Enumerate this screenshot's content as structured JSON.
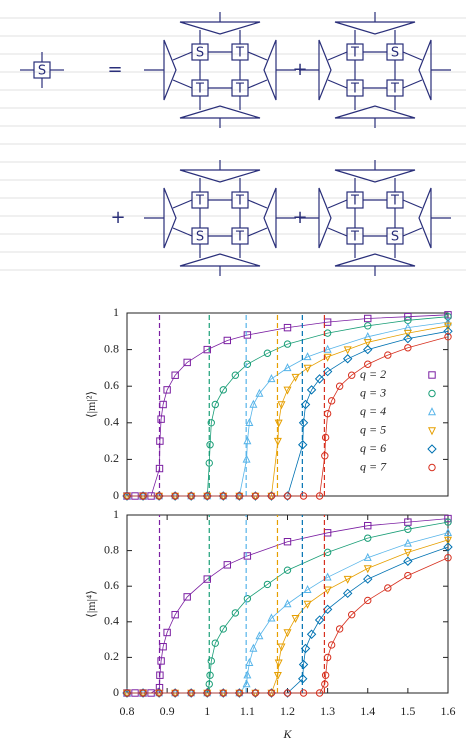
{
  "diagram": {
    "lhs": "S",
    "equals": "=",
    "plus": [
      "+",
      "+",
      "+"
    ],
    "terms": [
      [
        "S",
        "T",
        "T",
        "T"
      ],
      [
        "T",
        "S",
        "T",
        "T"
      ],
      [
        "T",
        "T",
        "S",
        "T"
      ],
      [
        "T",
        "T",
        "T",
        "S"
      ]
    ]
  },
  "chart_data": [
    {
      "type": "scatter",
      "ylabel": "⟨|m|²⟩",
      "xlim": [
        0.8,
        1.6
      ],
      "ylim": [
        0,
        1
      ],
      "yticks": [
        0,
        0.2,
        0.4,
        0.6,
        0.8,
        1
      ],
      "legend": "right",
      "series": [
        {
          "name": "q = 2",
          "color": "#7b1fa2",
          "marker": "square",
          "critical_x": 0.881,
          "x": [
            0.8,
            0.82,
            0.84,
            0.86,
            0.881,
            0.882,
            0.885,
            0.89,
            0.9,
            0.92,
            0.95,
            1.0,
            1.05,
            1.1,
            1.2,
            1.3,
            1.4,
            1.5,
            1.6
          ],
          "values": [
            0,
            0,
            0,
            0,
            0.15,
            0.3,
            0.42,
            0.5,
            0.58,
            0.66,
            0.73,
            0.8,
            0.85,
            0.88,
            0.92,
            0.95,
            0.97,
            0.98,
            0.99
          ]
        },
        {
          "name": "q = 3",
          "color": "#1a9e77",
          "marker": "circle",
          "critical_x": 1.005,
          "x": [
            0.8,
            0.84,
            0.88,
            0.92,
            0.96,
            1.0,
            1.005,
            1.007,
            1.01,
            1.02,
            1.04,
            1.07,
            1.1,
            1.15,
            1.2,
            1.3,
            1.4,
            1.5,
            1.6
          ],
          "values": [
            0,
            0,
            0,
            0,
            0,
            0,
            0.18,
            0.28,
            0.4,
            0.5,
            0.58,
            0.66,
            0.72,
            0.78,
            0.83,
            0.89,
            0.93,
            0.96,
            0.98
          ]
        },
        {
          "name": "q = 4",
          "color": "#56b4e9",
          "marker": "triangle-up",
          "critical_x": 1.097,
          "x": [
            0.8,
            0.84,
            0.88,
            0.92,
            0.96,
            1.0,
            1.04,
            1.08,
            1.098,
            1.1,
            1.105,
            1.115,
            1.13,
            1.16,
            1.2,
            1.25,
            1.3,
            1.4,
            1.5,
            1.6
          ],
          "values": [
            0,
            0,
            0,
            0,
            0,
            0,
            0,
            0,
            0.2,
            0.3,
            0.4,
            0.5,
            0.56,
            0.64,
            0.7,
            0.76,
            0.8,
            0.87,
            0.92,
            0.95
          ]
        },
        {
          "name": "q = 5",
          "color": "#e69f00",
          "marker": "triangle-down",
          "critical_x": 1.175,
          "x": [
            0.8,
            0.84,
            0.88,
            0.92,
            0.96,
            1.0,
            1.04,
            1.08,
            1.12,
            1.16,
            1.176,
            1.178,
            1.185,
            1.2,
            1.22,
            1.25,
            1.3,
            1.35,
            1.4,
            1.5,
            1.6
          ],
          "values": [
            0,
            0,
            0,
            0,
            0,
            0,
            0,
            0,
            0,
            0,
            0.3,
            0.4,
            0.5,
            0.58,
            0.65,
            0.7,
            0.76,
            0.8,
            0.84,
            0.89,
            0.93
          ]
        },
        {
          "name": "q = 6",
          "color": "#0072b2",
          "marker": "diamond",
          "critical_x": 1.237,
          "x": [
            0.8,
            0.84,
            0.88,
            0.92,
            0.96,
            1.0,
            1.04,
            1.08,
            1.12,
            1.16,
            1.2,
            1.238,
            1.24,
            1.245,
            1.26,
            1.28,
            1.3,
            1.35,
            1.4,
            1.5,
            1.6
          ],
          "values": [
            0,
            0,
            0,
            0,
            0,
            0,
            0,
            0,
            0,
            0,
            0,
            0.28,
            0.4,
            0.5,
            0.58,
            0.64,
            0.68,
            0.75,
            0.8,
            0.86,
            0.9
          ]
        },
        {
          "name": "q = 7",
          "color": "#d7301f",
          "marker": "circle",
          "critical_x": 1.292,
          "x": [
            0.8,
            0.84,
            0.88,
            0.92,
            0.96,
            1.0,
            1.04,
            1.08,
            1.12,
            1.16,
            1.2,
            1.24,
            1.28,
            1.293,
            1.295,
            1.3,
            1.31,
            1.33,
            1.36,
            1.4,
            1.45,
            1.5,
            1.6
          ],
          "values": [
            0,
            0,
            0,
            0,
            0,
            0,
            0,
            0,
            0,
            0,
            0,
            0,
            0,
            0.22,
            0.32,
            0.45,
            0.52,
            0.6,
            0.66,
            0.72,
            0.77,
            0.81,
            0.87
          ]
        }
      ]
    },
    {
      "type": "scatter",
      "ylabel": "⟨|m|⁴⟩",
      "xlabel": "K",
      "xlim": [
        0.8,
        1.6
      ],
      "ylim": [
        0,
        1
      ],
      "yticks": [
        0,
        0.2,
        0.4,
        0.6,
        0.8,
        1
      ],
      "xticks": [
        0.8,
        0.9,
        1,
        1.1,
        1.2,
        1.3,
        1.4,
        1.5,
        1.6
      ],
      "series": [
        {
          "color": "#7b1fa2",
          "marker": "square",
          "critical_x": 0.881,
          "x": [
            0.8,
            0.82,
            0.84,
            0.86,
            0.881,
            0.882,
            0.885,
            0.89,
            0.9,
            0.92,
            0.95,
            1.0,
            1.05,
            1.1,
            1.2,
            1.3,
            1.4,
            1.5,
            1.6
          ],
          "values": [
            0,
            0,
            0,
            0,
            0.03,
            0.1,
            0.18,
            0.26,
            0.34,
            0.44,
            0.54,
            0.64,
            0.72,
            0.77,
            0.85,
            0.9,
            0.94,
            0.96,
            0.98
          ]
        },
        {
          "color": "#1a9e77",
          "marker": "circle",
          "critical_x": 1.005,
          "x": [
            0.8,
            0.84,
            0.88,
            0.92,
            0.96,
            1.0,
            1.005,
            1.007,
            1.01,
            1.02,
            1.04,
            1.07,
            1.1,
            1.15,
            1.2,
            1.3,
            1.4,
            1.5,
            1.6
          ],
          "values": [
            0,
            0,
            0,
            0,
            0,
            0,
            0.05,
            0.1,
            0.18,
            0.28,
            0.36,
            0.45,
            0.53,
            0.61,
            0.69,
            0.79,
            0.87,
            0.92,
            0.96
          ]
        },
        {
          "color": "#56b4e9",
          "marker": "triangle-up",
          "critical_x": 1.097,
          "x": [
            0.8,
            0.84,
            0.88,
            0.92,
            0.96,
            1.0,
            1.04,
            1.08,
            1.098,
            1.1,
            1.105,
            1.115,
            1.13,
            1.16,
            1.2,
            1.25,
            1.3,
            1.4,
            1.5,
            1.6
          ],
          "values": [
            0,
            0,
            0,
            0,
            0,
            0,
            0,
            0,
            0.05,
            0.1,
            0.17,
            0.25,
            0.32,
            0.42,
            0.5,
            0.58,
            0.65,
            0.76,
            0.84,
            0.9
          ]
        },
        {
          "color": "#e69f00",
          "marker": "triangle-down",
          "critical_x": 1.175,
          "x": [
            0.8,
            0.84,
            0.88,
            0.92,
            0.96,
            1.0,
            1.04,
            1.08,
            1.12,
            1.16,
            1.176,
            1.178,
            1.185,
            1.2,
            1.22,
            1.25,
            1.3,
            1.35,
            1.4,
            1.5,
            1.6
          ],
          "values": [
            0,
            0,
            0,
            0,
            0,
            0,
            0,
            0,
            0,
            0,
            0.1,
            0.17,
            0.26,
            0.34,
            0.42,
            0.5,
            0.58,
            0.64,
            0.7,
            0.79,
            0.86
          ]
        },
        {
          "color": "#0072b2",
          "marker": "diamond",
          "critical_x": 1.237,
          "x": [
            0.8,
            0.84,
            0.88,
            0.92,
            0.96,
            1.0,
            1.04,
            1.08,
            1.12,
            1.16,
            1.2,
            1.238,
            1.24,
            1.245,
            1.26,
            1.28,
            1.3,
            1.35,
            1.4,
            1.5,
            1.6
          ],
          "values": [
            0,
            0,
            0,
            0,
            0,
            0,
            0,
            0,
            0,
            0,
            0,
            0.08,
            0.16,
            0.25,
            0.33,
            0.41,
            0.47,
            0.56,
            0.64,
            0.74,
            0.82
          ]
        },
        {
          "color": "#d7301f",
          "marker": "circle",
          "critical_x": 1.292,
          "x": [
            0.8,
            0.84,
            0.88,
            0.92,
            0.96,
            1.0,
            1.04,
            1.08,
            1.12,
            1.16,
            1.2,
            1.24,
            1.28,
            1.293,
            1.295,
            1.3,
            1.31,
            1.33,
            1.36,
            1.4,
            1.45,
            1.5,
            1.6
          ],
          "values": [
            0,
            0,
            0,
            0,
            0,
            0,
            0,
            0,
            0,
            0,
            0,
            0,
            0,
            0.05,
            0.1,
            0.2,
            0.27,
            0.36,
            0.44,
            0.52,
            0.59,
            0.66,
            0.76
          ]
        }
      ]
    }
  ]
}
